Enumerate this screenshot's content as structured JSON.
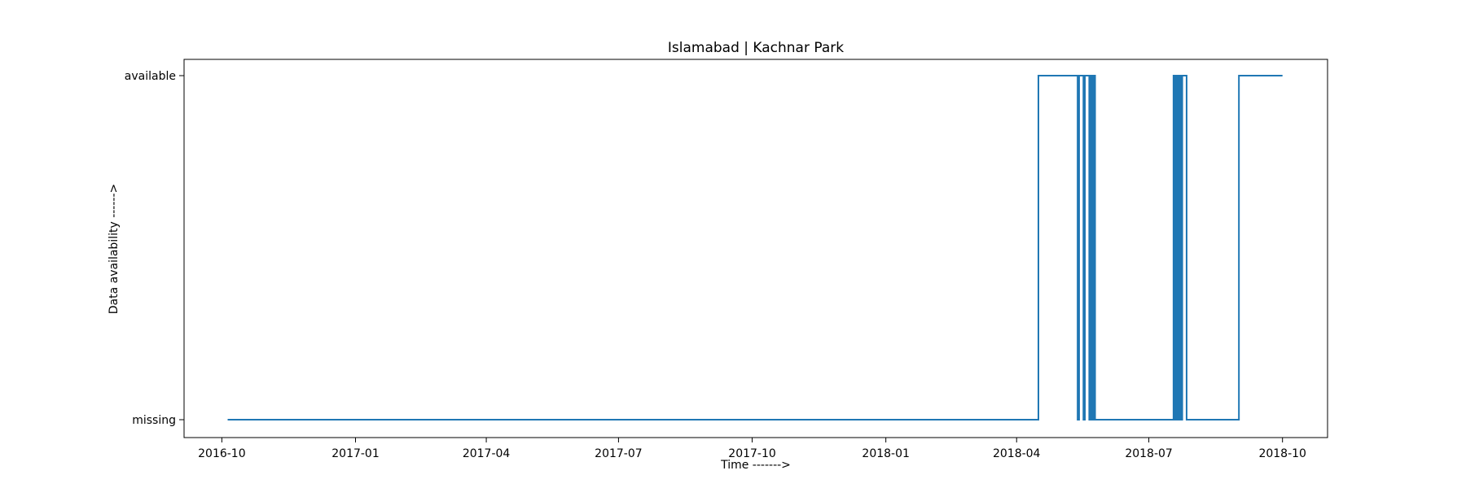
{
  "chart_data": {
    "type": "line",
    "step": true,
    "title": "Islamabad | Kachnar Park",
    "xlabel": "Time ------->",
    "ylabel": "Data availability ------>",
    "y_categories": [
      "missing",
      "available"
    ],
    "x_ticks": [
      "2016-10",
      "2017-01",
      "2017-04",
      "2017-07",
      "2017-10",
      "2018-01",
      "2018-04",
      "2018-07",
      "2018-10"
    ],
    "xlim": [
      "2016-09-05",
      "2018-11-01"
    ],
    "grid": false,
    "legend": "none",
    "color": "#1f77b4",
    "series": [
      {
        "x": [
          "2016-10-05",
          "2018-04-16",
          "2018-04-16",
          "2018-05-13",
          "2018-05-13",
          "2018-05-14",
          "2018-05-14",
          "2018-05-17",
          "2018-05-17",
          "2018-05-18",
          "2018-05-18",
          "2018-05-21",
          "2018-05-21",
          "2018-05-22",
          "2018-05-22",
          "2018-05-23",
          "2018-05-23",
          "2018-05-24",
          "2018-05-24",
          "2018-05-25",
          "2018-05-25",
          "2018-07-18",
          "2018-07-18",
          "2018-07-19",
          "2018-07-19",
          "2018-07-20",
          "2018-07-20",
          "2018-07-21",
          "2018-07-21",
          "2018-07-22",
          "2018-07-22",
          "2018-07-23",
          "2018-07-23",
          "2018-07-24",
          "2018-07-24",
          "2018-07-27",
          "2018-07-27",
          "2018-09-01",
          "2018-09-01",
          "2018-10-01"
        ],
        "y": [
          "missing",
          "missing",
          "available",
          "available",
          "missing",
          "missing",
          "available",
          "available",
          "missing",
          "missing",
          "available",
          "available",
          "missing",
          "missing",
          "available",
          "available",
          "missing",
          "missing",
          "available",
          "available",
          "missing",
          "missing",
          "available",
          "available",
          "missing",
          "missing",
          "available",
          "available",
          "missing",
          "missing",
          "available",
          "available",
          "missing",
          "missing",
          "available",
          "available",
          "missing",
          "missing",
          "available",
          "available"
        ]
      }
    ]
  }
}
